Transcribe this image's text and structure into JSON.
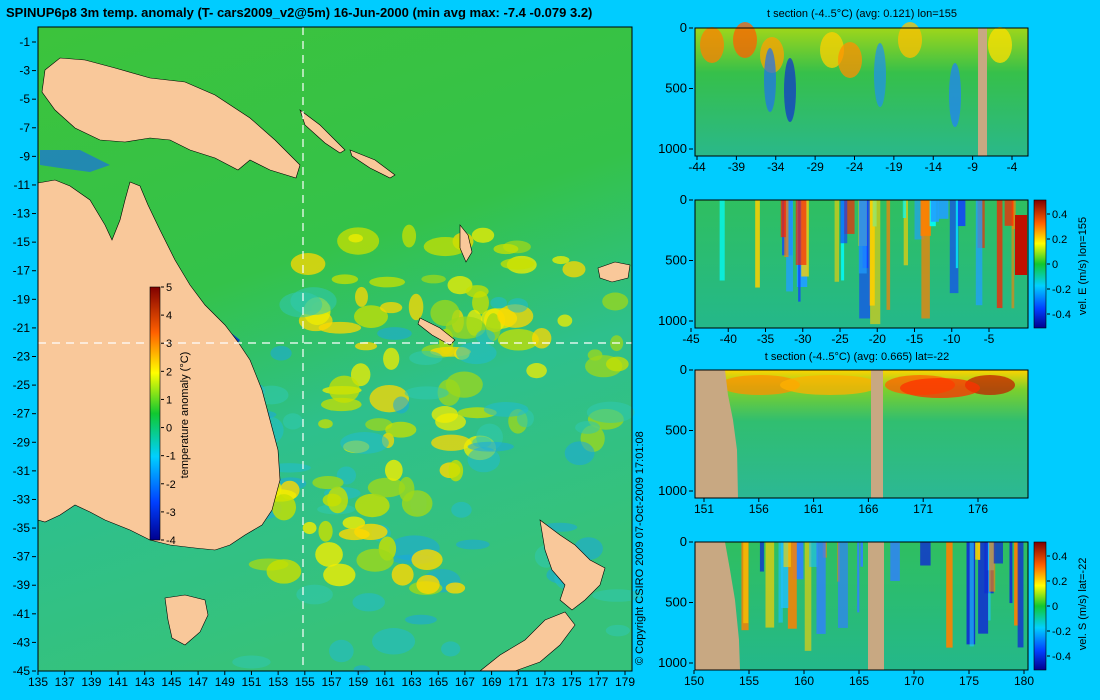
{
  "title": "SPINUP6p8 3m temp. anomaly (T- cars2009_v2@5m) 16-Jun-2000 (min avg max: -7.4 -0.079 3.2)",
  "credit": "© Copyright CSIRO 2009   07-Oct-2009 17:01:08",
  "colors": {
    "background": "#00ccff",
    "land": "#f9c89a",
    "section_land": "#c8a882",
    "crosshair": "#ffffff"
  },
  "chart_data": [
    {
      "type": "heatmap",
      "name": "map",
      "x_ticks": [
        "135",
        "137",
        "139",
        "141",
        "143",
        "145",
        "147",
        "149",
        "151",
        "153",
        "155",
        "157",
        "159",
        "161",
        "163",
        "165",
        "167",
        "169",
        "171",
        "173",
        "175",
        "177",
        "179"
      ],
      "y_ticks": [
        "-1",
        "-3",
        "-5",
        "-7",
        "-9",
        "-11",
        "-13",
        "-15",
        "-17",
        "-19",
        "-21",
        "-23",
        "-25",
        "-27",
        "-29",
        "-31",
        "-33",
        "-35",
        "-37",
        "-39",
        "-41",
        "-43",
        "-45"
      ],
      "xlim": [
        135,
        180
      ],
      "ylim": [
        -45,
        0
      ],
      "crosshair": {
        "lon": 155,
        "lat": -22
      },
      "colorbar": {
        "label": "temperature anomaly (°C)",
        "ticks": [
          "5",
          "4",
          "3",
          "2",
          "1",
          "0",
          "-1",
          "-2",
          "-3",
          "-4"
        ],
        "range": [
          -4,
          5
        ]
      }
    },
    {
      "type": "heatmap",
      "name": "t-section-lon",
      "title": "t section (-4..5°C) (avg: 0.121) lon=155",
      "x_ticks": [
        "-44",
        "-39",
        "-34",
        "-29",
        "-24",
        "-19",
        "-14",
        "-9",
        "-4"
      ],
      "y_ticks": [
        "0",
        "500",
        "1000"
      ],
      "xlim": [
        -45,
        -0.5
      ],
      "ylim": [
        1050,
        0
      ]
    },
    {
      "type": "heatmap",
      "name": "vel-e-section",
      "x_ticks": [
        "-45",
        "-40",
        "-35",
        "-30",
        "-25",
        "-20",
        "-15",
        "-10",
        "-5"
      ],
      "y_ticks": [
        "0",
        "500",
        "1000"
      ],
      "xlim": [
        -45,
        -0.5
      ],
      "ylim": [
        1050,
        0
      ],
      "colorbar": {
        "label": "vel. E (m/s) lon=155",
        "ticks": [
          "0.4",
          "0.2",
          "0",
          "-0.2",
          "-0.4"
        ],
        "range": [
          -0.45,
          0.45
        ]
      }
    },
    {
      "type": "heatmap",
      "name": "t-section-lat",
      "title": "t section (-4..5°C) (avg: 0.665) lat=-22",
      "x_ticks": [
        "151",
        "156",
        "161",
        "166",
        "171",
        "176"
      ],
      "y_ticks": [
        "0",
        "500",
        "1000"
      ],
      "xlim": [
        149.5,
        180
      ],
      "ylim": [
        1050,
        0
      ]
    },
    {
      "type": "heatmap",
      "name": "vel-s-section",
      "x_ticks": [
        "150",
        "155",
        "160",
        "165",
        "170",
        "175",
        "180"
      ],
      "y_ticks": [
        "0",
        "500",
        "1000"
      ],
      "xlim": [
        150,
        180
      ],
      "ylim": [
        1050,
        0
      ],
      "colorbar": {
        "label": "vel. S (m/s) lat=-22",
        "ticks": [
          "0.4",
          "0.2",
          "0",
          "-0.2",
          "-0.4"
        ],
        "range": [
          -0.45,
          0.45
        ]
      }
    }
  ]
}
